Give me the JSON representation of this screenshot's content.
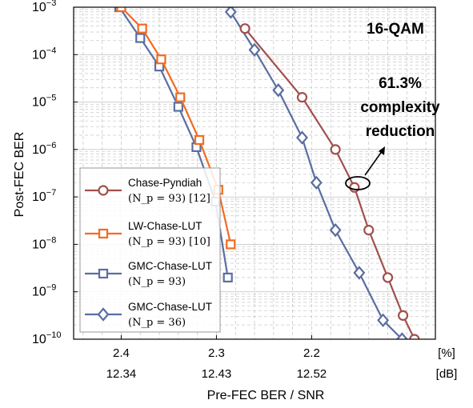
{
  "chart_data": {
    "type": "line",
    "title": "",
    "xlabel": "Pre-FEC BER / SNR",
    "ylabel": "Post-FEC BER",
    "x_unit_top": "[%]",
    "x_unit_bottom": "[dB]",
    "xlim_ber_percent": [
      2.45,
      2.07
    ],
    "ylim": [
      "1e-10",
      "1e-3"
    ],
    "yscale": "log",
    "grid": true,
    "x_ticks": [
      {
        "ber": 2.4,
        "ber_label": "2.4",
        "snr_label": "12.34"
      },
      {
        "ber": 2.3,
        "ber_label": "2.3",
        "snr_label": "12.43"
      },
      {
        "ber": 2.2,
        "ber_label": "2.2",
        "snr_label": "12.52"
      }
    ],
    "y_ticks": [
      {
        "exp": -3,
        "label": "10",
        "sup": "−3"
      },
      {
        "exp": -4,
        "label": "10",
        "sup": "−4"
      },
      {
        "exp": -5,
        "label": "10",
        "sup": "−5"
      },
      {
        "exp": -6,
        "label": "10",
        "sup": "−6"
      },
      {
        "exp": -7,
        "label": "10",
        "sup": "−7"
      },
      {
        "exp": -8,
        "label": "10",
        "sup": "−8"
      },
      {
        "exp": -9,
        "label": "10",
        "sup": "−9"
      },
      {
        "exp": -10,
        "label": "10",
        "sup": "−10"
      }
    ],
    "annotations": {
      "modulation": "16-QAM",
      "reduction_line1": "61.3%",
      "reduction_line2": "complexity",
      "reduction_line3": "reduction"
    },
    "legend_position": "bottom-left",
    "series": [
      {
        "name": "Chase-Pyndiah",
        "name_sub": "(N_p = 93) [12]",
        "color": "#a0504d",
        "marker": "circle",
        "x": [
          2.27,
          2.21,
          2.175,
          2.155,
          2.14,
          2.12,
          2.104,
          2.092
        ],
        "logy": [
          -3.45,
          -4.9,
          -6.0,
          -6.8,
          -7.7,
          -8.7,
          -9.5,
          -10.0
        ]
      },
      {
        "name": "LW-Chase-LUT",
        "name_sub": "(N_p = 93) [10]",
        "color": "#f26b21",
        "marker": "square",
        "x": [
          2.4,
          2.378,
          2.358,
          2.338,
          2.318,
          2.298,
          2.285
        ],
        "logy": [
          -3.0,
          -3.45,
          -4.1,
          -4.9,
          -5.8,
          -6.85,
          -8.0
        ]
      },
      {
        "name": "GMC-Chase-LUT",
        "name_sub": "(N_p = 93)",
        "color": "#5a6ea0",
        "marker": "square",
        "x": [
          2.402,
          2.38,
          2.36,
          2.34,
          2.321,
          2.301,
          2.288
        ],
        "logy": [
          -3.0,
          -3.65,
          -4.25,
          -5.1,
          -5.95,
          -7.1,
          -8.7
        ]
      },
      {
        "name": "GMC-Chase-LUT",
        "name_sub": "(N_p = 36)",
        "color": "#5a6ea0",
        "marker": "diamond",
        "x": [
          2.285,
          2.26,
          2.235,
          2.21,
          2.195,
          2.175,
          2.15,
          2.125,
          2.105
        ],
        "logy": [
          -3.1,
          -3.9,
          -4.75,
          -5.75,
          -6.7,
          -7.7,
          -8.6,
          -9.6,
          -10.0
        ]
      }
    ]
  }
}
